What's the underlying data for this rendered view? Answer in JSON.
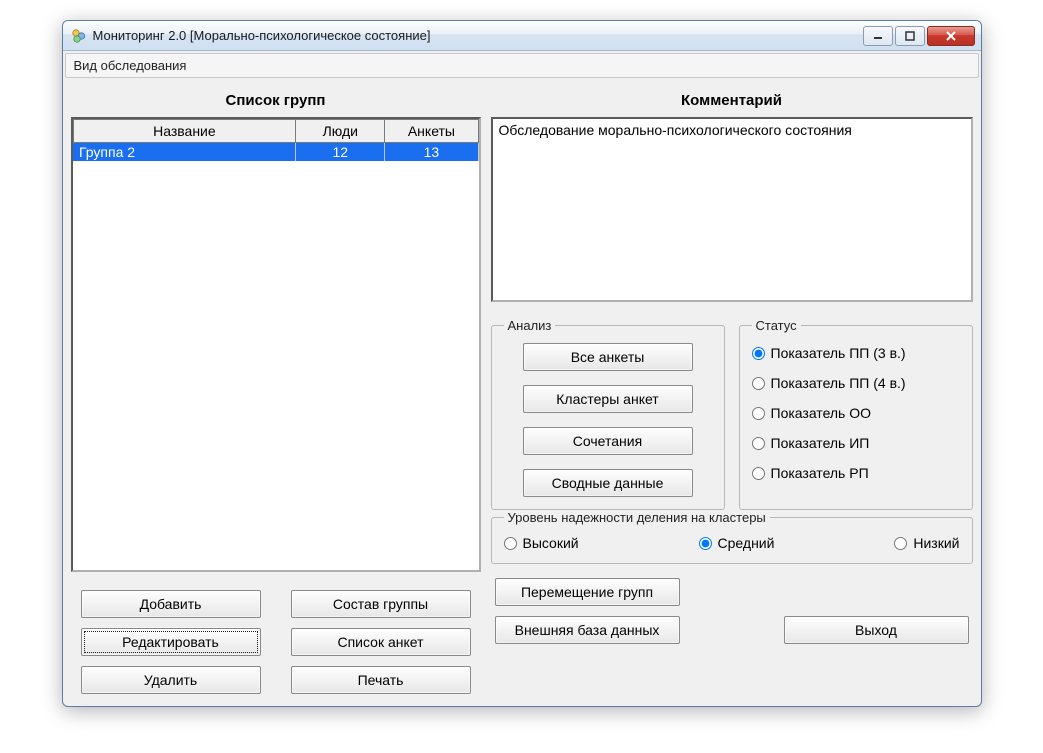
{
  "window": {
    "title": "Мониторинг 2.0 [Морально-психологическое состояние]"
  },
  "menu": {
    "survey_type": "Вид обследования"
  },
  "colors": {
    "selection": "#1a6ef0",
    "window_bg": "#f0f0f0",
    "close_btn": "#c93a2c"
  },
  "left": {
    "title": "Список групп",
    "columns": {
      "name": "Название",
      "people": "Люди",
      "surveys": "Анкеты"
    },
    "rows": [
      {
        "name": "Группа 2",
        "people": "12",
        "surveys": "13",
        "selected": true
      }
    ],
    "buttons": {
      "add": "Добавить",
      "edit": "Редактировать",
      "delete": "Удалить",
      "group_members": "Состав группы",
      "survey_list": "Список анкет",
      "print": "Печать"
    }
  },
  "right": {
    "title": "Комментарий",
    "comment": "Обследование морально-психологического состояния",
    "analysis": {
      "legend": "Анализ",
      "all_surveys": "Все анкеты",
      "clusters": "Кластеры анкет",
      "combinations": "Сочетания",
      "summary": "Сводные данные"
    },
    "status": {
      "legend": "Статус",
      "options": [
        "Показатель ПП (3 в.)",
        "Показатель ПП (4 в.)",
        "Показатель ОО",
        "Показатель ИП",
        "Показатель РП"
      ],
      "selected_index": 0
    },
    "reliability": {
      "legend": "Уровень надежности деления на кластеры",
      "options": [
        "Высокий",
        "Средний",
        "Низкий"
      ],
      "selected_index": 1
    },
    "bottom": {
      "move_groups": "Перемещение групп",
      "external_db": "Внешняя база данных",
      "exit": "Выход"
    }
  }
}
